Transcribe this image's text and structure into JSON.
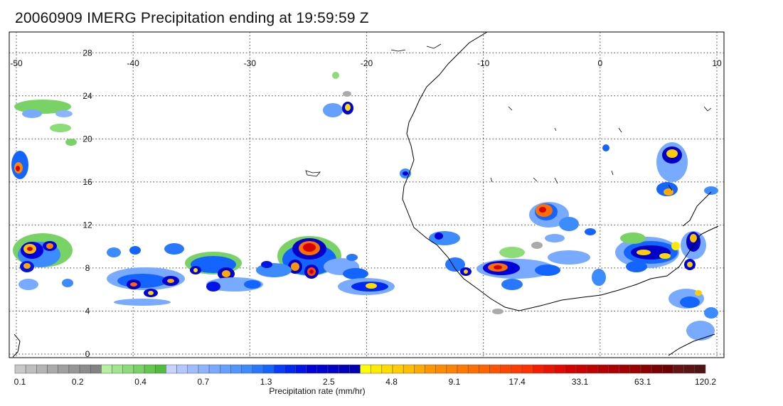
{
  "title": "20060909 IMERG Precipitation ending at 19:59:59 Z",
  "map": {
    "lon_range": [
      -50,
      10
    ],
    "lat_range": [
      0,
      30
    ],
    "lon_ticks": [
      "-50",
      "-40",
      "-30",
      "-20",
      "-10",
      "0",
      "10"
    ],
    "lat_ticks": [
      "0",
      "4",
      "8",
      "12",
      "16",
      "20",
      "24",
      "28"
    ],
    "grid": "dotted"
  },
  "colorbar": {
    "label": "Precipitation rate (mm/hr)",
    "tick_labels": [
      "0.1",
      "0.2",
      "0.4",
      "0.7",
      "1.3",
      "2.5",
      "4.8",
      "9.1",
      "17.4",
      "33.1",
      "63.1",
      "120.2"
    ],
    "colors": [
      "#c8c8c8",
      "#bebebe",
      "#b4b4b4",
      "#aaaaaa",
      "#a0a0a0",
      "#969696",
      "#8c8c8c",
      "#828282",
      "#b4f0a0",
      "#a0e68c",
      "#8cdc78",
      "#78d264",
      "#64c850",
      "#50be3c",
      "#c8d2ff",
      "#b4c8ff",
      "#a0beff",
      "#8cb4ff",
      "#78aaff",
      "#64a0ff",
      "#5096ff",
      "#3c8cff",
      "#2878ff",
      "#1464ff",
      "#0a3cff",
      "#0028f0",
      "#0014e6",
      "#0000dc",
      "#0000d2",
      "#0000c8",
      "#0000be",
      "#0000b4",
      "#ffff00",
      "#ffeb00",
      "#ffdc00",
      "#ffcd00",
      "#ffbe00",
      "#ffaa00",
      "#ff9600",
      "#ff8c00",
      "#ff8200",
      "#ff7800",
      "#ff6e00",
      "#ff6400",
      "#ff5500",
      "#ff4600",
      "#ff3c00",
      "#ff3200",
      "#f51e00",
      "#eb1400",
      "#e10a00",
      "#d70000",
      "#cd0000",
      "#c30000",
      "#b90000",
      "#af0000",
      "#a50000",
      "#9b0000",
      "#8c0000",
      "#7d0000",
      "#6e0000",
      "#641414",
      "#5a1414",
      "#501414"
    ]
  }
}
